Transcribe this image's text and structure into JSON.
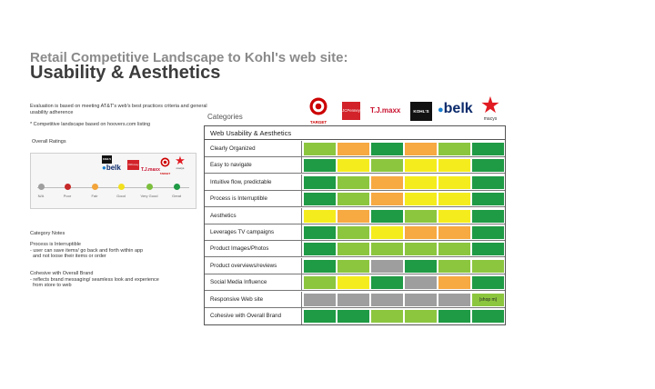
{
  "slide": {
    "title_line1": "Retail Competitive Landscape to Kohl's web site:",
    "title_line2": "Usability & Aesthetics",
    "intro": "Evaluation is based on meeting AT&T's web's best practices criteria and general usability adherence",
    "competitive_note": "* Competitive landscape based on hoovers.com listing",
    "overall_label": "Overall Ratings",
    "categories_label": "Categories",
    "category_notes_head": "Category Notes",
    "notes": [
      {
        "head": "Process is Interruptible",
        "lines": [
          "- user can save items/ go back and forth within app",
          "  and not loose their items or order"
        ]
      },
      {
        "head": "Cohesive with Overall Brand",
        "lines": [
          "- reflects brand messaging/ seamless look and experience",
          "  from store to web"
        ]
      }
    ]
  },
  "ratings_scale": [
    {
      "label": "N/A",
      "color": "#9e9e9e"
    },
    {
      "label": "Poor",
      "color": "#c62828"
    },
    {
      "label": "Fair",
      "color": "#f2a43a"
    },
    {
      "label": "Good",
      "color": "#f2e01e"
    },
    {
      "label": "Very Good",
      "color": "#7cbf3d"
    },
    {
      "label": "Great",
      "color": "#1f9a45"
    }
  ],
  "retailers": [
    {
      "name": "TARGET",
      "icon": "target-bullseye-icon"
    },
    {
      "name": "JCPenney",
      "icon": "jcpenney-logo"
    },
    {
      "name": "T.J.maxx",
      "icon": "tjmaxx-logo"
    },
    {
      "name": "KOHL'S",
      "icon": "kohls-logo"
    },
    {
      "name": "belk",
      "icon": "belk-logo"
    },
    {
      "name": "macys",
      "icon": "macys-star-icon"
    }
  ],
  "overall_logos": {
    "kohls": "KOHL'S",
    "belk": "belk",
    "jcpenney": "JCPenney",
    "tjmaxx": "T.J.maxx",
    "target": "TARGET",
    "macys": "macys"
  },
  "colors": {
    "great": "#1f9a45",
    "very_good": "#8cc63f",
    "good": "#f5ec1e",
    "fair": "#f7a942",
    "na": "#9e9e9e"
  },
  "table": {
    "header": "Web Usability & Aesthetics",
    "rows": [
      {
        "label": "Clearly Organized",
        "ratings": [
          "very_good",
          "fair",
          "great",
          "fair",
          "very_good",
          "great"
        ]
      },
      {
        "label": "Easy to navigate",
        "ratings": [
          "great",
          "good",
          "very_good",
          "good",
          "good",
          "great"
        ]
      },
      {
        "label": "Intuitive flow, predictable",
        "ratings": [
          "great",
          "very_good",
          "fair",
          "good",
          "good",
          "great"
        ]
      },
      {
        "label": "Process is Interruptible",
        "ratings": [
          "great",
          "very_good",
          "fair",
          "good",
          "good",
          "great"
        ]
      },
      {
        "label": "Aesthetics",
        "ratings": [
          "good",
          "fair",
          "great",
          "very_good",
          "good",
          "great"
        ]
      },
      {
        "label": "Leverages TV campaigns",
        "ratings": [
          "great",
          "very_good",
          "good",
          "fair",
          "fair",
          "great"
        ]
      },
      {
        "label": "Product Images/Photos",
        "ratings": [
          "great",
          "very_good",
          "very_good",
          "very_good",
          "very_good",
          "great"
        ]
      },
      {
        "label": "Product overviews/reviews",
        "ratings": [
          "great",
          "very_good",
          "na",
          "great",
          "very_good",
          "very_good"
        ]
      },
      {
        "label": "Social Media Influence",
        "ratings": [
          "very_good",
          "good",
          "great",
          "na",
          "fair",
          "great"
        ]
      },
      {
        "label": "Responsive Web site",
        "ratings": [
          "na",
          "na",
          "na",
          "na",
          "na",
          "very_good"
        ],
        "labels": [
          "",
          "",
          "",
          "",
          "",
          "(shop m)"
        ]
      },
      {
        "label": "Cohesive with Overall Brand",
        "ratings": [
          "great",
          "great",
          "very_good",
          "very_good",
          "great",
          "great"
        ]
      }
    ]
  }
}
